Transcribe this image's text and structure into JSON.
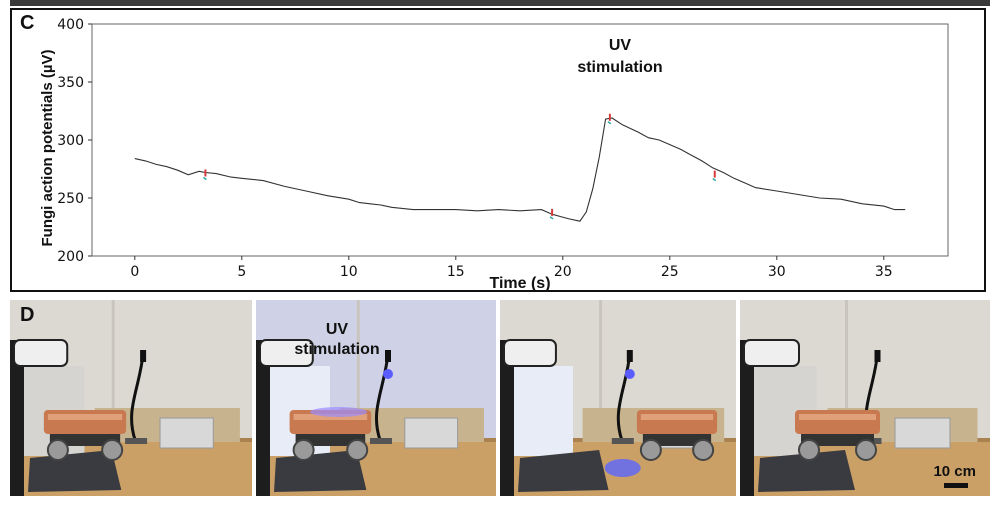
{
  "panel_c": {
    "letter": "C",
    "annotation": "UV\nstimulation",
    "chart_data": {
      "type": "line",
      "xlabel": "Time (s)",
      "ylabel": "Fungi action potentials (µV)",
      "xlim": [
        -2,
        38
      ],
      "ylim": [
        200,
        400
      ],
      "xticks": [
        0,
        5,
        10,
        15,
        20,
        25,
        30,
        35
      ],
      "yticks": [
        200,
        250,
        300,
        350,
        400
      ],
      "grid": false,
      "series": [
        {
          "x": [
            0,
            0.5,
            1,
            1.5,
            2,
            2.5,
            3,
            3.3,
            3.8,
            4.5,
            5,
            6,
            7,
            8,
            9,
            10,
            10.5,
            11,
            11.5,
            12,
            12.5,
            13,
            14,
            15,
            16,
            17,
            18,
            19,
            19.5,
            19.9,
            20.3,
            20.8,
            21.1,
            21.4,
            21.7,
            22,
            22.3,
            22.8,
            23.5,
            24,
            24.5,
            25,
            25.5,
            26,
            26.5,
            27,
            27.5,
            28,
            28.5,
            29,
            30,
            31,
            32,
            33,
            34,
            35,
            35.5,
            36
          ],
          "y": [
            284,
            282,
            279,
            277,
            274,
            270,
            273,
            272,
            271,
            268,
            267,
            265,
            260,
            256,
            252,
            249,
            246,
            245,
            244,
            242,
            241,
            240,
            240,
            240,
            239,
            240,
            239,
            240,
            236,
            234,
            232,
            230,
            238,
            258,
            285,
            318,
            319,
            313,
            307,
            302,
            300,
            296,
            292,
            287,
            282,
            276,
            272,
            267,
            263,
            259,
            256,
            253,
            250,
            249,
            245,
            243,
            240,
            240
          ]
        }
      ],
      "markers": [
        {
          "x": 3.3,
          "y": 272,
          "color": "#d63a3a"
        },
        {
          "x": 19.5,
          "y": 238,
          "color": "#d63a3a"
        },
        {
          "x": 22.2,
          "y": 320,
          "color": "#d63a3a"
        },
        {
          "x": 27.1,
          "y": 271,
          "color": "#d63a3a"
        }
      ]
    }
  },
  "panel_d": {
    "letter": "D",
    "uv_label": "UV\nstimulation",
    "scale_label": "10 cm",
    "frames": [
      {
        "name": "frame-1-before",
        "uv": false
      },
      {
        "name": "frame-2-uv-on",
        "uv": true
      },
      {
        "name": "frame-3-moving",
        "uv": true
      },
      {
        "name": "frame-4-after",
        "uv": false
      }
    ]
  }
}
